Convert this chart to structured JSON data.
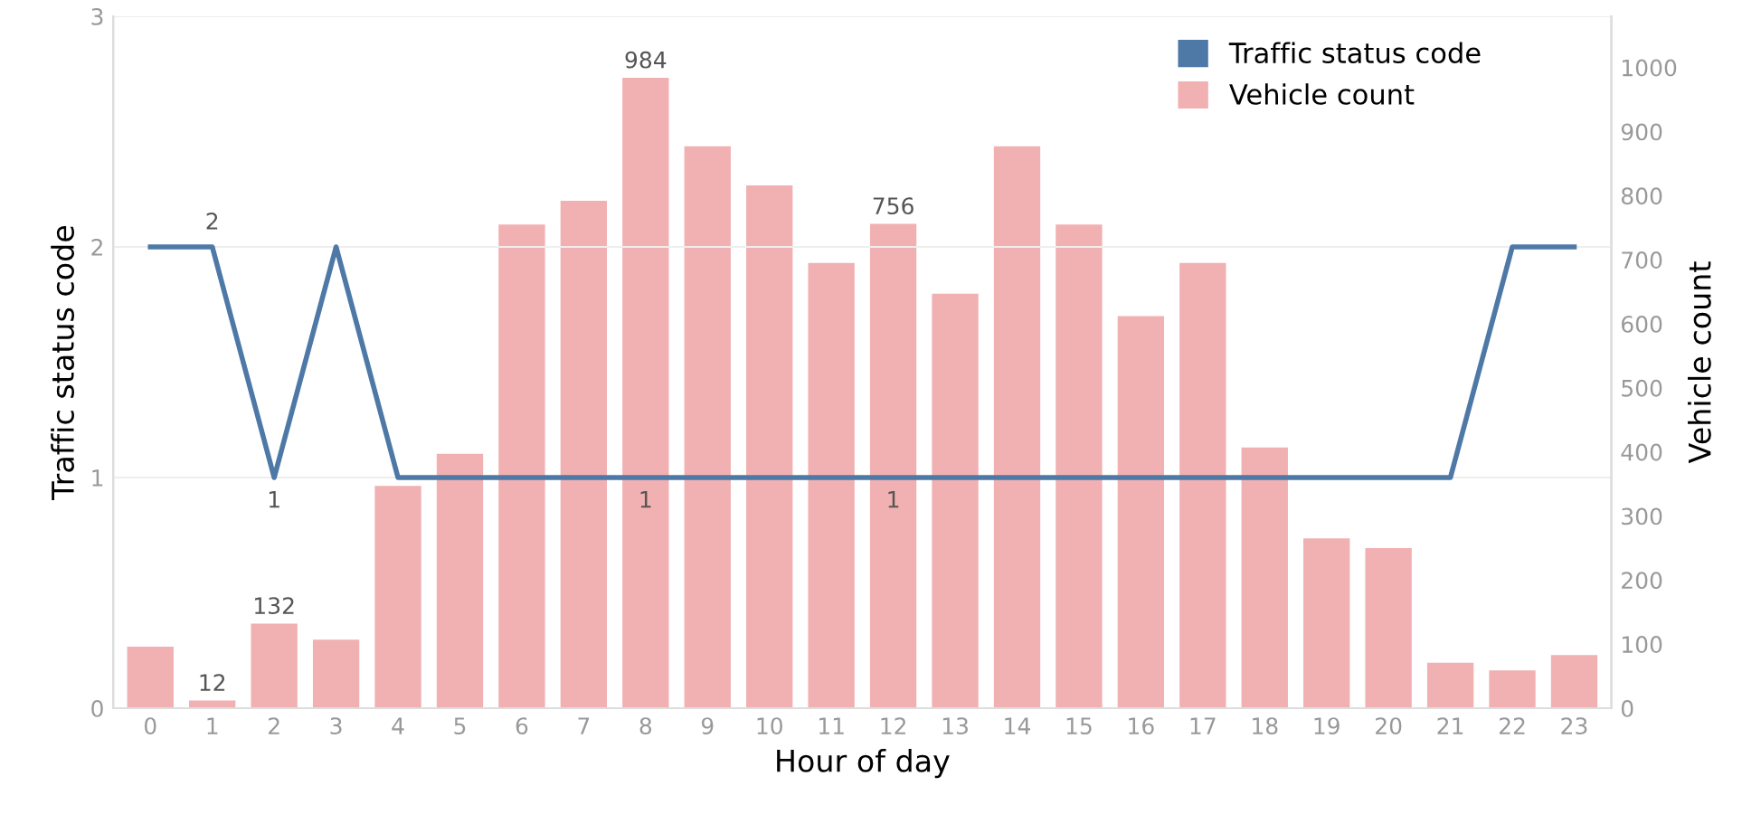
{
  "chart_data": {
    "type": "bar",
    "xlabel": "Hour of day",
    "ylabel": "Traffic status code",
    "y2label": "Vehicle count",
    "categories": [
      "0",
      "1",
      "2",
      "3",
      "4",
      "5",
      "6",
      "7",
      "8",
      "9",
      "10",
      "11",
      "12",
      "13",
      "14",
      "15",
      "16",
      "17",
      "18",
      "19",
      "20",
      "21",
      "22",
      "23"
    ],
    "series": [
      {
        "name": "Vehicle count",
        "axis": "y2",
        "color": "#f1b0b1",
        "values": [
          96,
          12,
          132,
          107,
          347,
          397,
          755,
          792,
          984,
          877,
          816,
          695,
          756,
          647,
          877,
          755,
          612,
          695,
          407,
          265,
          250,
          71,
          59,
          83
        ],
        "value_labels": [
          null,
          "12",
          "132",
          null,
          null,
          null,
          null,
          null,
          "984",
          null,
          null,
          null,
          "756",
          null,
          null,
          null,
          null,
          null,
          null,
          null,
          null,
          null,
          null,
          null
        ]
      },
      {
        "name": "Traffic status code",
        "type": "line",
        "color": "#4e79a7",
        "values": [
          2,
          2,
          1,
          2,
          1,
          1,
          1,
          1,
          1,
          1,
          1,
          1,
          1,
          1,
          1,
          1,
          1,
          1,
          1,
          1,
          1,
          1,
          2,
          2
        ],
        "value_labels": [
          null,
          "2",
          "1",
          null,
          null,
          null,
          null,
          null,
          "1",
          null,
          null,
          null,
          "1",
          null,
          null,
          null,
          null,
          null,
          null,
          null,
          null,
          null,
          null,
          null
        ]
      }
    ],
    "ylim": [
      0,
      3
    ],
    "yticks": [
      0,
      1,
      2,
      3
    ],
    "y2lim": [
      0,
      1080
    ],
    "y2ticks": [
      0,
      100,
      200,
      300,
      400,
      500,
      600,
      700,
      800,
      900,
      1000
    ],
    "grid": "y",
    "legend": "top right",
    "marker": "none",
    "line_style": "solid"
  }
}
